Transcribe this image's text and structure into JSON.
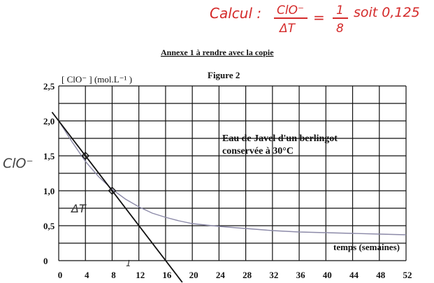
{
  "handwritten_note": {
    "prefix": "Calcul :",
    "numerator": "ClO⁻",
    "denominator": "ΔT",
    "equals": "=",
    "fraction_num": "1",
    "fraction_den": "8",
    "suffix": "soit 0,125",
    "color": "#d42a2a"
  },
  "header": {
    "annexe": "Annexe 1 à rendre avec la copie",
    "figure": "Figure 2"
  },
  "chart_data": {
    "type": "line",
    "ylabel": "[ ClO⁻ ] (mol.L⁻¹ )",
    "xlabel": "temps (semaines)",
    "xlim": [
      0,
      52
    ],
    "ylim": [
      0,
      2.5
    ],
    "x_ticks": [
      "0",
      "4",
      "8",
      "12",
      "16",
      "20",
      "24",
      "28",
      "32",
      "36",
      "40",
      "44",
      "48",
      "52"
    ],
    "y_ticks": [
      "0",
      "0,5",
      "1,0",
      "1,5",
      "2,0",
      "2,5"
    ],
    "annotation": [
      "Eau de Javel d'un berlingot",
      "conservée à 30°C"
    ],
    "grid": true,
    "series": [
      {
        "kind": "measured-curve",
        "x": [
          0,
          2,
          4,
          6,
          8,
          10,
          12,
          14,
          16,
          18,
          20,
          22,
          24,
          28,
          32,
          36,
          40,
          44,
          48,
          52
        ],
        "y": [
          2.0,
          1.7,
          1.42,
          1.2,
          1.02,
          0.88,
          0.77,
          0.68,
          0.62,
          0.57,
          0.53,
          0.51,
          0.49,
          0.46,
          0.43,
          0.41,
          0.4,
          0.39,
          0.38,
          0.37
        ],
        "color": "#8c8aa8"
      },
      {
        "kind": "tangent-line",
        "x": [
          -1,
          18.5
        ],
        "y": [
          2.125,
          -0.31
        ],
        "color": "#111111"
      }
    ],
    "marked_points": [
      {
        "x": 4,
        "y": 1.5
      },
      {
        "x": 8,
        "y": 1.0
      }
    ],
    "margin_notes": {
      "left_label": "ClO⁻",
      "delta_label": "ΔT",
      "tick_mark": "1"
    }
  }
}
